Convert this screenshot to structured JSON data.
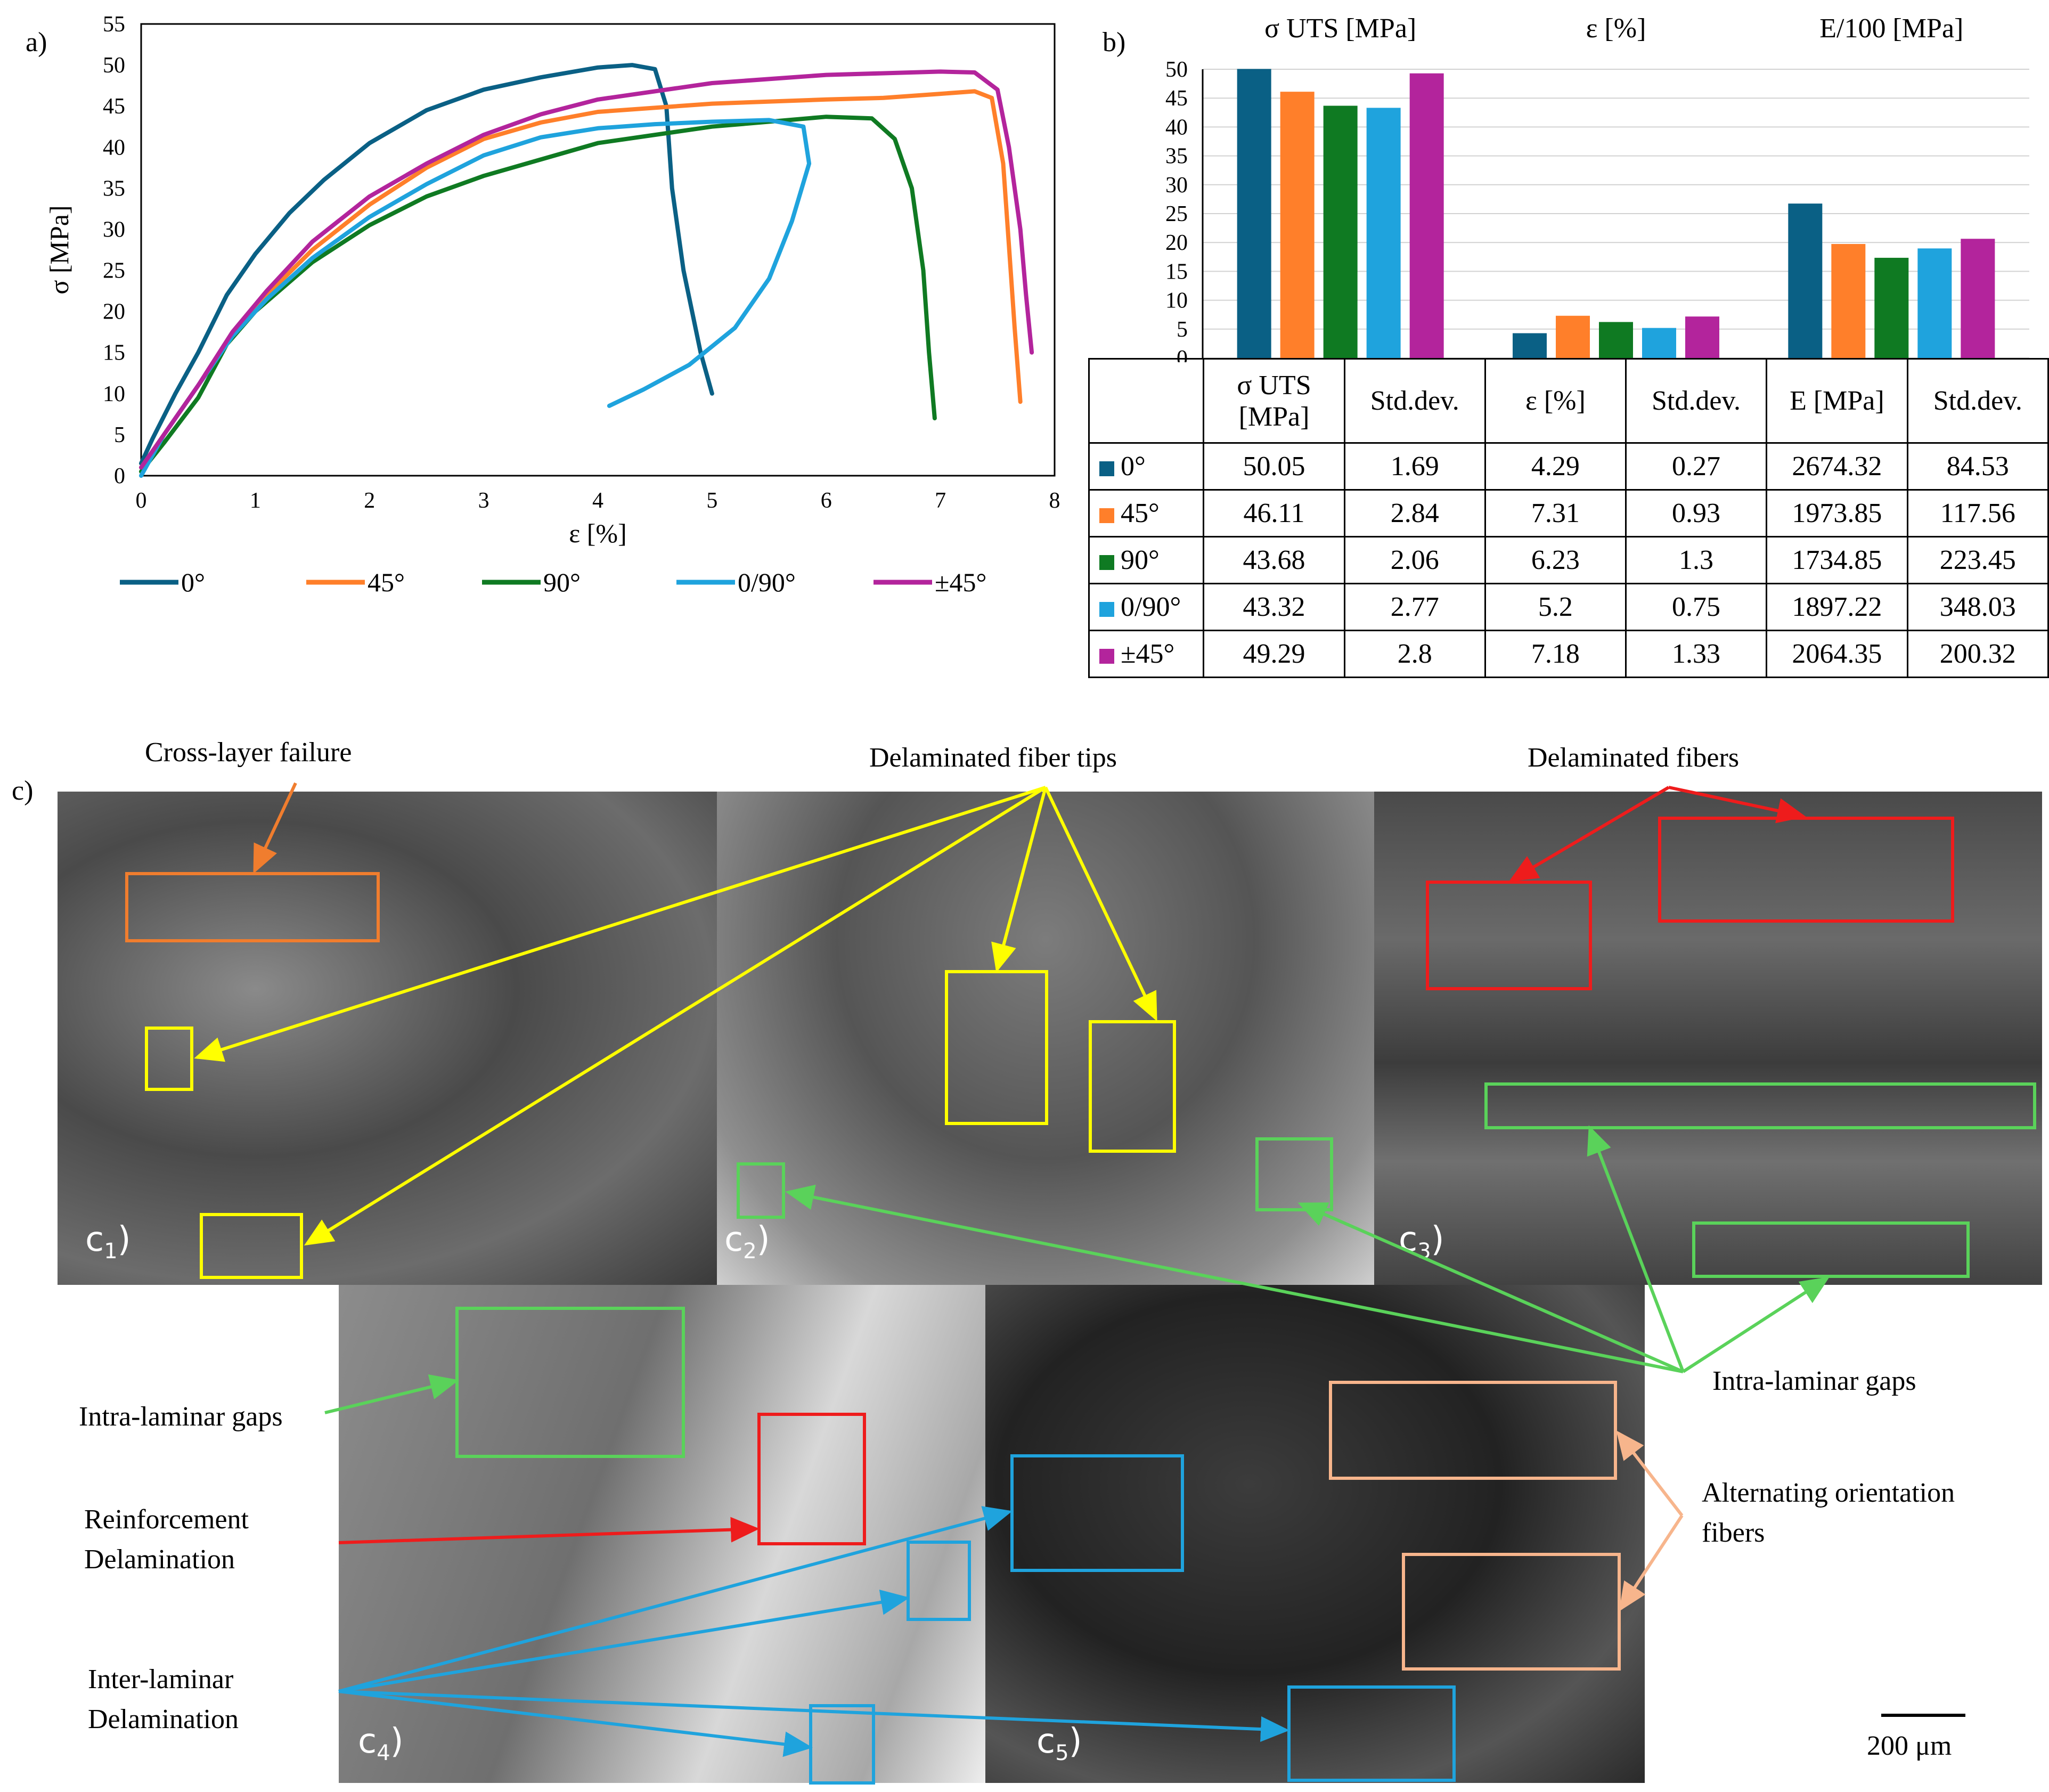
{
  "panel_labels": {
    "a": "a)",
    "b": "b)",
    "c": "c)"
  },
  "colors": {
    "deg0": "#0a6085",
    "deg45": "#ff7f2a",
    "deg90": "#0f7a22",
    "deg0_90": "#1fa3dd",
    "pm45": "#b3249c"
  },
  "chart_data": [
    {
      "type": "line",
      "xlabel": "ε [%]",
      "ylabel": "σ [MPa]",
      "xlim": [
        0,
        8
      ],
      "ylim": [
        0,
        55
      ],
      "xticks": [
        "0",
        "1",
        "2",
        "3",
        "4",
        "5",
        "6",
        "7",
        "8"
      ],
      "yticks": [
        "0",
        "5",
        "10",
        "15",
        "20",
        "25",
        "30",
        "35",
        "40",
        "45",
        "50",
        "55"
      ],
      "legend_position": "bottom",
      "series": [
        {
          "name": "0°",
          "color": "#0a6085",
          "x": [
            0,
            0.1,
            0.3,
            0.5,
            0.75,
            1.0,
            1.3,
            1.6,
            2.0,
            2.5,
            3.0,
            3.5,
            4.0,
            4.3,
            4.5,
            4.6,
            4.65,
            4.75,
            4.9,
            5.0
          ],
          "y": [
            1.5,
            4.5,
            10,
            15,
            22,
            27,
            32,
            36,
            40.5,
            44.5,
            47,
            48.5,
            49.7,
            50.0,
            49.5,
            45,
            35,
            25,
            15,
            10
          ]
        },
        {
          "name": "45°",
          "color": "#ff7f2a",
          "x": [
            0,
            0.2,
            0.5,
            0.8,
            1.1,
            1.5,
            2.0,
            2.5,
            3.0,
            3.5,
            4.0,
            5.0,
            6.0,
            6.5,
            7.0,
            7.3,
            7.45,
            7.55,
            7.6,
            7.65,
            7.7
          ],
          "y": [
            1.0,
            5,
            11,
            17,
            22,
            27.5,
            33,
            37.5,
            41,
            43,
            44.3,
            45.3,
            45.8,
            46,
            46.5,
            46.8,
            46,
            38,
            28,
            18,
            9
          ]
        },
        {
          "name": "90°",
          "color": "#0f7a22",
          "x": [
            0,
            0.2,
            0.5,
            0.75,
            1.0,
            1.5,
            2.0,
            2.5,
            3.0,
            3.5,
            4.0,
            5.0,
            6.0,
            6.4,
            6.6,
            6.75,
            6.85,
            6.9,
            6.95
          ],
          "y": [
            0.5,
            4,
            9.5,
            16,
            20,
            26,
            30.5,
            34,
            36.5,
            38.5,
            40.5,
            42.5,
            43.7,
            43.5,
            41,
            35,
            25,
            15,
            7
          ]
        },
        {
          "name": "0/90°",
          "color": "#1fa3dd",
          "x": [
            0,
            0.2,
            0.5,
            0.8,
            1.1,
            1.5,
            2.0,
            2.5,
            3.0,
            3.5,
            4.0,
            4.5,
            5.0,
            5.5,
            5.8,
            5.85,
            5.7,
            5.5,
            5.2,
            4.8,
            4.4,
            4.1
          ],
          "y": [
            0,
            5,
            11,
            17,
            21.5,
            26.5,
            31.5,
            35.5,
            39,
            41.2,
            42.3,
            42.8,
            43.1,
            43.3,
            42.5,
            38,
            31,
            24,
            18,
            13.5,
            10.5,
            8.5
          ]
        },
        {
          "name": "±45°",
          "color": "#b3249c",
          "x": [
            0,
            0.2,
            0.5,
            0.8,
            1.1,
            1.5,
            2.0,
            2.5,
            3.0,
            3.5,
            4.0,
            5.0,
            6.0,
            7.0,
            7.3,
            7.5,
            7.6,
            7.7,
            7.75,
            7.8
          ],
          "y": [
            1.0,
            5,
            11,
            17.5,
            22.5,
            28.5,
            34,
            38,
            41.5,
            44,
            45.8,
            47.8,
            48.8,
            49.2,
            49.1,
            47,
            40,
            30,
            22,
            15
          ]
        }
      ]
    },
    {
      "type": "bar",
      "categories": [
        "σ UTS [MPa]",
        "ε [%]",
        "E/100 [MPa]"
      ],
      "ylim": [
        0,
        50
      ],
      "yticks": [
        "0",
        "5",
        "10",
        "15",
        "20",
        "25",
        "30",
        "35",
        "40",
        "45",
        "50"
      ],
      "grid": true,
      "series": [
        {
          "name": "0°",
          "color": "#0a6085",
          "values": [
            50.05,
            4.29,
            26.74
          ]
        },
        {
          "name": "45°",
          "color": "#ff7f2a",
          "values": [
            46.11,
            7.31,
            19.74
          ]
        },
        {
          "name": "90°",
          "color": "#0f7a22",
          "values": [
            43.68,
            6.23,
            17.35
          ]
        },
        {
          "name": "0/90°",
          "color": "#1fa3dd",
          "values": [
            43.32,
            5.2,
            18.97
          ]
        },
        {
          "name": "±45°",
          "color": "#b3249c",
          "values": [
            49.29,
            7.18,
            20.64
          ]
        }
      ]
    },
    {
      "type": "table",
      "headers": [
        "σ UTS\n[MPa]",
        "Std.dev.",
        "ε [%]",
        "Std.dev.",
        "E [MPa]",
        "Std.dev."
      ],
      "rows": [
        {
          "label": "0°",
          "color": "#0a6085",
          "cells": [
            "50.05",
            "1.69",
            "4.29",
            "0.27",
            "2674.32",
            "84.53"
          ]
        },
        {
          "label": "45°",
          "color": "#ff7f2a",
          "cells": [
            "46.11",
            "2.84",
            "7.31",
            "0.93",
            "1973.85",
            "117.56"
          ]
        },
        {
          "label": "90°",
          "color": "#0f7a22",
          "cells": [
            "43.68",
            "2.06",
            "6.23",
            "1.3",
            "1734.85",
            "223.45"
          ]
        },
        {
          "label": "0/90°",
          "color": "#1fa3dd",
          "cells": [
            "43.32",
            "2.77",
            "5.2",
            "0.75",
            "1897.22",
            "348.03"
          ]
        },
        {
          "label": "±45°",
          "color": "#b3249c",
          "cells": [
            "49.29",
            "2.8",
            "7.18",
            "1.33",
            "2064.35",
            "200.32"
          ]
        }
      ]
    }
  ],
  "sem": {
    "labels": [
      {
        "base": "c",
        "sub": "1",
        "close": ")"
      },
      {
        "base": "c",
        "sub": "2",
        "close": ")"
      },
      {
        "base": "c",
        "sub": "3",
        "close": ")"
      },
      {
        "base": "c",
        "sub": "4",
        "close": ")"
      },
      {
        "base": "c",
        "sub": "5",
        "close": ")"
      }
    ],
    "annotations": {
      "cross_layer_failure": "Cross-layer failure",
      "delaminated_fiber_tips": "Delaminated fiber tips",
      "delaminated_fibers": "Delaminated fibers",
      "intra_laminar_gaps_right": "Intra-laminar gaps",
      "intra_laminar_gaps_left": "Intra-laminar gaps",
      "reinforcement_delamination_1": "Reinforcement",
      "reinforcement_delamination_2": "Delamination",
      "inter_laminar_1": "Inter-laminar",
      "inter_laminar_2": "Delamination",
      "alternating_1": "Alternating orientation",
      "alternating_2": "fibers"
    },
    "scale_bar": "200 μm",
    "annotation_colors": {
      "orange": "#f07d2e",
      "yellow": "#ffff00",
      "red": "#ee1c1c",
      "green": "#5ad25a",
      "blue": "#1fa3dd",
      "peach": "#f7b58c"
    }
  }
}
